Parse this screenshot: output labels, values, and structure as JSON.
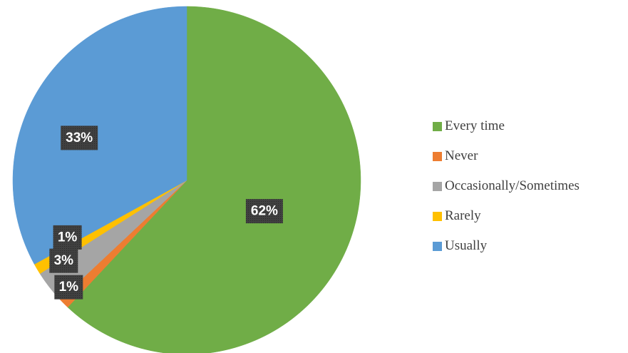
{
  "chart_data": {
    "type": "pie",
    "title": "",
    "start_angle_deg": 0,
    "direction": "clockwise",
    "legend_position": "right",
    "slices": [
      {
        "label": "Every time",
        "value": 62,
        "display": "62%",
        "color": "#70AD47"
      },
      {
        "label": "Never",
        "value": 1,
        "display": "1%",
        "color": "#ED7D31"
      },
      {
        "label": "Occasionally/Sometimes",
        "value": 3,
        "display": "3%",
        "color": "#A5A5A5"
      },
      {
        "label": "Rarely",
        "value": 1,
        "display": "1%",
        "color": "#FFC000"
      },
      {
        "label": "Usually",
        "value": 33,
        "display": "33%",
        "color": "#5B9BD5"
      }
    ],
    "label_box_color": "#404040"
  }
}
